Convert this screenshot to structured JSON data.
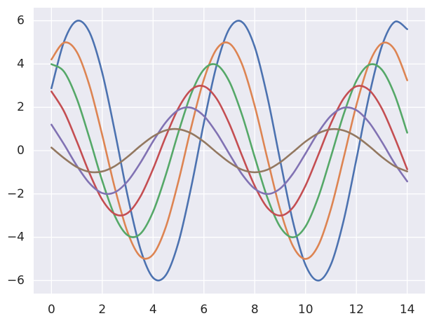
{
  "chart_data": {
    "type": "line",
    "x": [
      0,
      0.5,
      1,
      1.5,
      2,
      2.5,
      3,
      3.5,
      4,
      4.5,
      5,
      5.5,
      6,
      6.5,
      7,
      7.5,
      8,
      8.5,
      9,
      9.5,
      10,
      10.5,
      11,
      11.5,
      12,
      12.5,
      13,
      13.5,
      14
    ],
    "series": [
      {
        "color": "#4c72b0",
        "values": [
          2.88,
          5.05,
          5.99,
          5.46,
          3.59,
          0.85,
          -2.1,
          -4.54,
          -5.87,
          -5.75,
          -4.23,
          -1.68,
          1.29,
          3.94,
          5.63,
          5.94,
          4.79,
          2.47,
          -0.45,
          -3.26,
          -5.28,
          -6.0,
          -5.25,
          -3.22,
          -0.4,
          2.52,
          4.82,
          5.94,
          5.61
        ]
      },
      {
        "color": "#dd8452",
        "values": [
          4.21,
          4.99,
          4.55,
          2.99,
          0.71,
          -1.75,
          -3.78,
          -4.89,
          -4.79,
          -3.53,
          -1.4,
          1.08,
          3.29,
          4.69,
          4.95,
          3.99,
          2.06,
          -0.38,
          -2.72,
          -4.4,
          -5.0,
          -4.38,
          -2.68,
          -0.33,
          2.1,
          4.02,
          4.95,
          4.67,
          3.25
        ]
      },
      {
        "color": "#55a868",
        "values": [
          3.99,
          3.64,
          2.39,
          0.56,
          -1.4,
          -3.03,
          -3.91,
          -3.84,
          -2.82,
          -1.12,
          0.86,
          2.63,
          3.75,
          3.96,
          3.19,
          1.65,
          -0.3,
          -2.18,
          -3.52,
          -4.0,
          -3.5,
          -2.15,
          -0.27,
          1.68,
          3.22,
          3.96,
          3.74,
          2.6,
          0.83
        ]
      },
      {
        "color": "#c44e52",
        "values": [
          2.73,
          1.8,
          0.42,
          -1.05,
          -2.27,
          -2.93,
          -2.88,
          -2.12,
          -0.84,
          0.65,
          1.97,
          2.81,
          2.97,
          2.4,
          1.24,
          -0.23,
          -1.63,
          -2.64,
          -3.0,
          -2.63,
          -1.61,
          -0.2,
          1.26,
          2.41,
          2.97,
          2.8,
          1.95,
          0.62,
          -0.86
        ]
      },
      {
        "color": "#8172b3",
        "values": [
          1.2,
          0.28,
          -0.7,
          -1.51,
          -1.96,
          -1.92,
          -1.41,
          -0.56,
          0.43,
          1.31,
          1.88,
          1.98,
          1.6,
          0.82,
          -0.15,
          -1.09,
          -1.76,
          -2.0,
          -1.75,
          -1.07,
          -0.13,
          0.84,
          1.61,
          1.98,
          1.87,
          1.3,
          0.41,
          -0.58,
          -1.42
        ]
      },
      {
        "color": "#937860",
        "values": [
          0.14,
          -0.35,
          -0.76,
          -0.98,
          -0.96,
          -0.71,
          -0.28,
          0.22,
          0.66,
          0.94,
          0.99,
          0.8,
          0.41,
          -0.08,
          -0.54,
          -0.88,
          -1.0,
          -0.88,
          -0.54,
          -0.07,
          0.42,
          0.8,
          0.99,
          0.93,
          0.65,
          0.21,
          -0.29,
          -0.71,
          -0.96
        ]
      }
    ],
    "xlim": [
      -0.7,
      14.7
    ],
    "ylim": [
      -6.6,
      6.6
    ],
    "xticks": [
      0,
      2,
      4,
      6,
      8,
      10,
      12,
      14
    ],
    "yticks": [
      {
        "value": -6,
        "label": "−6"
      },
      {
        "value": -4,
        "label": "−4"
      },
      {
        "value": -2,
        "label": "−2"
      },
      0,
      2,
      4,
      6
    ],
    "grid": true,
    "background": "#eaeaf2"
  }
}
